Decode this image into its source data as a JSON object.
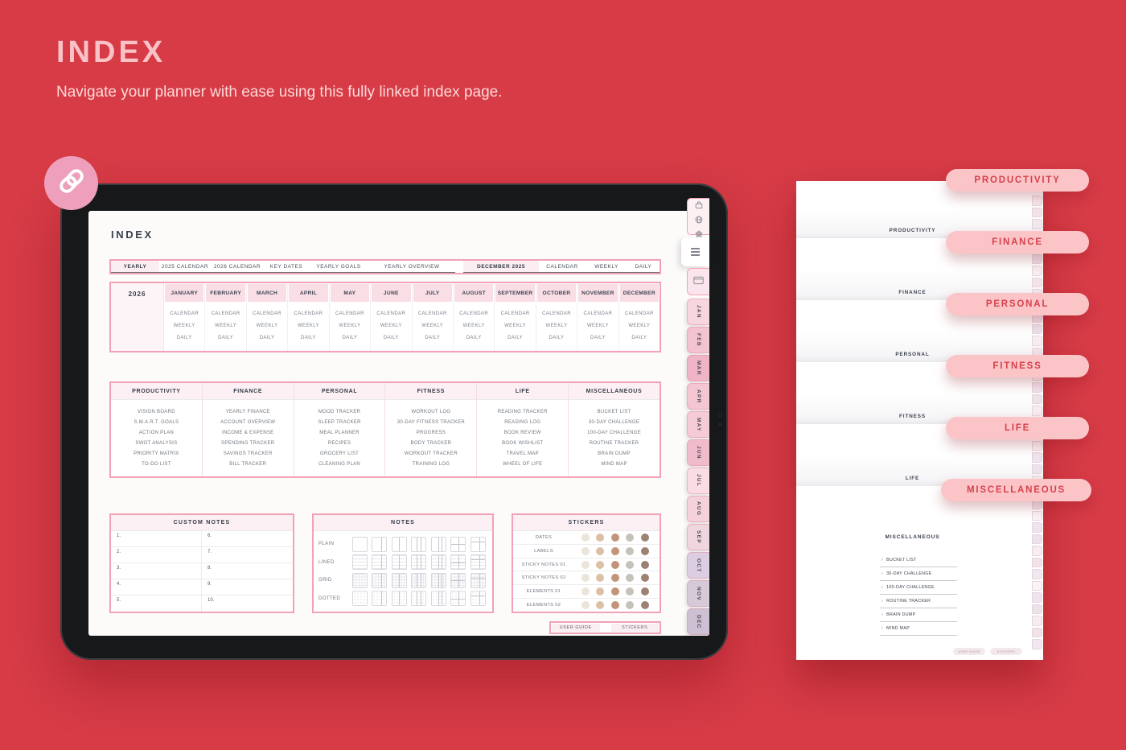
{
  "header": {
    "title": "INDEX",
    "subtitle": "Navigate your planner with ease using this fully linked index page."
  },
  "planner": {
    "title": "INDEX",
    "top_nav": {
      "yearly_label": "YEARLY",
      "links": [
        "2025 CALENDAR",
        "2026 CALENDAR",
        "KEY DATES",
        "YEARLY GOALS",
        "YEARLY OVERVIEW"
      ],
      "current_month_label": "DECEMBER 2025",
      "month_links": [
        "CALENDAR",
        "WEEKLY",
        "DAILY"
      ]
    },
    "year_grid": {
      "year": "2026",
      "months": [
        "JANUARY",
        "FEBRUARY",
        "MARCH",
        "APRIL",
        "MAY",
        "JUNE",
        "JULY",
        "AUGUST",
        "SEPTEMBER",
        "OCTOBER",
        "NOVEMBER",
        "DECEMBER"
      ],
      "month_links": [
        "CALENDAR",
        "WEEKLY",
        "DAILY"
      ]
    },
    "categories": [
      {
        "title": "PRODUCTIVITY",
        "items": [
          "VISION BOARD",
          "S.M.A.R.T. GOALS",
          "ACTION PLAN",
          "SWOT ANALYSIS",
          "PRIORITY MATRIX",
          "TO-DO LIST"
        ]
      },
      {
        "title": "FINANCE",
        "items": [
          "YEARLY FINANCE",
          "ACCOUNT OVERVIEW",
          "INCOME & EXPENSE",
          "SPENDING TRACKER",
          "SAVINGS TRACKER",
          "BILL TRACKER"
        ]
      },
      {
        "title": "PERSONAL",
        "items": [
          "MOOD TRACKER",
          "SLEEP TRACKER",
          "MEAL PLANNER",
          "RECIPES",
          "GROCERY LIST",
          "CLEANING PLAN"
        ]
      },
      {
        "title": "FITNESS",
        "items": [
          "WORKOUT LOG",
          "30-DAY FITNESS TRACKER",
          "PROGRESS",
          "BODY TRACKER",
          "WORKOUT TRACKER",
          "TRAINING LOG"
        ]
      },
      {
        "title": "LIFE",
        "items": [
          "READING TRACKER",
          "READING LOG",
          "BOOK REVIEW",
          "BOOK WISHLIST",
          "TRAVEL MAP",
          "WHEEL OF LIFE"
        ]
      },
      {
        "title": "MISCELLANEOUS",
        "items": [
          "BUCKET LIST",
          "30-DAY CHALLENGE",
          "100-DAY CHALLENGE",
          "ROUTINE TRACKER",
          "BRAIN DUMP",
          "MIND MAP"
        ]
      }
    ],
    "custom_notes": {
      "title": "CUSTOM NOTES",
      "numbers": [
        "1.",
        "2.",
        "3.",
        "4.",
        "5.",
        "6.",
        "7.",
        "8.",
        "9.",
        "10."
      ]
    },
    "notes": {
      "title": "NOTES",
      "row_labels": [
        "PLAIN",
        "LINED",
        "GRID",
        "DOTTED"
      ],
      "thumbs_per_row": 7
    },
    "stickers": {
      "title": "STICKERS",
      "rows": [
        "DATES",
        "LABELS",
        "STICKY NOTES 01",
        "STICKY NOTES 02",
        "ELEMENTS 01",
        "ELEMENTS 02"
      ],
      "dot_colors": [
        "#ebe5d9",
        "#dcc0a5",
        "#c39479",
        "#c6c2b9",
        "#9d8273"
      ]
    },
    "footer_nav": [
      "USER GUIDE",
      "STICKERS"
    ],
    "side_tabs": {
      "months": [
        "JAN",
        "FEB",
        "MAR",
        "APR",
        "MAY",
        "JUN",
        "JUL",
        "AUG",
        "SEP",
        "OCT",
        "NOV",
        "DEC"
      ],
      "colors": [
        "#f8d6dd",
        "#f4c3d0",
        "#efb4c5",
        "#f3c6d2",
        "#f5cbd6",
        "#f0bccb",
        "#f9dde3",
        "#f5d2db",
        "#efd6de",
        "#dccde0",
        "#d6c9d8",
        "#ccc0d2"
      ]
    },
    "icons": {
      "badge": "chain-link-icon",
      "toolbar": [
        "bag-icon",
        "globe-icon",
        "flower-icon"
      ],
      "menu_tab": "hamburger-icon",
      "calendar_tab": "calendar-icon"
    }
  },
  "preview": {
    "pills": [
      "PRODUCTIVITY",
      "FINANCE",
      "PERSONAL",
      "FITNESS",
      "LIFE",
      "MISCELLANEOUS"
    ],
    "section_headings": [
      "PRODUCTIVITY",
      "FINANCE",
      "PERSONAL",
      "FITNESS",
      "LIFE"
    ],
    "misc_page": {
      "title": "MISCELLANEOUS",
      "items": [
        "BUCKET LIST",
        "30-DAY CHALLENGE",
        "100-DAY CHALLENGE",
        "ROUTINE TRACKER",
        "BRAIN DUMP",
        "MIND MAP"
      ]
    },
    "mini_buttons": [
      "USER GUIDE",
      "STICKERS"
    ]
  },
  "colors": {
    "background": "#d63b46",
    "pill_bg": "#fbc5c8",
    "pill_text": "#d7404c",
    "planner_border": "#f1a2b6",
    "header_fill": "#fdf0f4",
    "month_header_fill": "#f9dee6",
    "mini_tab_cycle": [
      "#f7ecef",
      "#f3e2e8",
      "#f1e8ef",
      "#faf4f6",
      "#efe4ee",
      "#ece2ea"
    ]
  }
}
